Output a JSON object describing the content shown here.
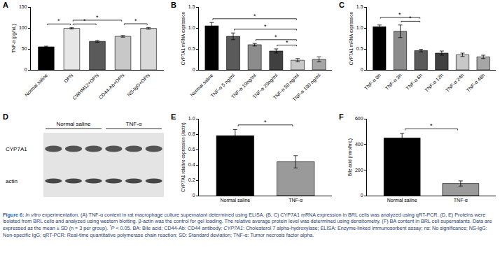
{
  "chart_data": [
    {
      "panel": "A",
      "type": "bar",
      "ylabel": "TNF-α (pg/mL)",
      "categories": [
        "Normal saline",
        "OPN",
        "CWHM12+OPN",
        "CD44-Ab+OPN",
        "NS-IgG+OPN"
      ],
      "values": [
        55,
        99,
        68,
        80,
        99
      ],
      "error": [
        1.5,
        1.5,
        2,
        2,
        2
      ],
      "colors": [
        "#000000",
        "#e6e6e6",
        "#5a5a5a",
        "#c8c8c8",
        "#d9d9d9"
      ],
      "ylim": [
        0,
        150
      ],
      "yticks": [
        0,
        50,
        100,
        150
      ],
      "grid": false,
      "significance": [
        {
          "from": "Normal saline",
          "to": "OPN",
          "label": "*"
        },
        {
          "from": "OPN",
          "to": "CWHM12+OPN",
          "label": "*"
        },
        {
          "from": "OPN",
          "to": "CD44-Ab+OPN",
          "label": "*"
        },
        {
          "from": "CD44-Ab+OPN",
          "to": "NS-IgG+OPN",
          "label": "*"
        }
      ]
    },
    {
      "panel": "B",
      "type": "bar",
      "ylabel": "CYP7A1 mRNA expression",
      "categories": [
        "Normal saline",
        "TNF-α 5 ng/ml",
        "TNF-α 10ng/ml",
        "TNF-α 20ng/ml",
        "TNF-α 50 ng/ml",
        "TNF-α 100 ng/ml"
      ],
      "values": [
        1.05,
        0.8,
        0.6,
        0.45,
        0.23,
        0.25
      ],
      "error": [
        0.08,
        0.08,
        0.03,
        0.05,
        0.04,
        0.06
      ],
      "colors": [
        "#000000",
        "#5a5a5a",
        "#8c8c8c",
        "#404040",
        "#c8c8c8",
        "#a6a6a6"
      ],
      "ylim": [
        0,
        1.5
      ],
      "yticks": [
        0,
        0.5,
        {
          "value": 1,
          "label": "1.0"
        },
        1.5
      ],
      "grid": false,
      "significance": [
        {
          "from": "Normal saline",
          "to": "TNF-α 50 ng/ml",
          "label": "*"
        },
        {
          "from": "TNF-α 5 ng/ml",
          "to": "TNF-α 50 ng/ml",
          "label": "*"
        },
        {
          "from": "TNF-α 10ng/ml",
          "to": "TNF-α 50 ng/ml",
          "label": "*"
        },
        {
          "from": "TNF-α 20ng/ml",
          "to": "TNF-α 50 ng/ml",
          "label": "*"
        }
      ]
    },
    {
      "panel": "C",
      "type": "bar",
      "ylabel": "CYP7A1 mRNA expression",
      "categories": [
        "TNF-α 0h",
        "TNF-α 3h",
        "TNF-α 6h",
        "TNF-α 12h",
        "TNF-α 24h",
        "TNF-α 48h"
      ],
      "values": [
        1.03,
        0.92,
        0.46,
        0.4,
        0.36,
        0.31
      ],
      "error": [
        0.04,
        0.15,
        0.03,
        0.05,
        0.04,
        0.04
      ],
      "colors": [
        "#000000",
        "#8c8c8c",
        "#5a5a5a",
        "#404040",
        "#c8c8c8",
        "#a6a6a6"
      ],
      "ylim": [
        0,
        1.5
      ],
      "yticks": [
        0,
        0.5,
        {
          "value": 1,
          "label": "1.0"
        },
        1.5
      ],
      "grid": false,
      "significance": [
        {
          "from": "TNF-α 0h",
          "to": "TNF-α 6h",
          "label": "*"
        },
        {
          "from": "TNF-α 3h",
          "to": "TNF-α 6h",
          "label": "*"
        }
      ]
    },
    {
      "panel": "E",
      "type": "bar",
      "ylabel": "CYP7A1 relative expression (/actin)",
      "categories": [
        "Normal saline",
        "TNF-α"
      ],
      "values": [
        0.78,
        0.44
      ],
      "error": [
        0.08,
        0.08
      ],
      "colors": [
        "#000000",
        "#9a9a9a"
      ],
      "ylim": [
        0,
        1.0
      ],
      "yticks": [
        0,
        0.2,
        0.4,
        0.6,
        0.8,
        {
          "value": 1,
          "label": "1.0"
        }
      ],
      "grid": false,
      "significance": [
        {
          "from": "Normal saline",
          "to": "TNF-α",
          "label": "*"
        }
      ]
    },
    {
      "panel": "F",
      "type": "bar",
      "ylabel": "Bile acid (nmol/mL)",
      "categories": [
        "Normal saline",
        "TNF-α"
      ],
      "values": [
        450,
        95
      ],
      "error": [
        35,
        20
      ],
      "colors": [
        "#000000",
        "#9a9a9a"
      ],
      "ylim": [
        0,
        600
      ],
      "yticks": [
        0,
        200,
        400,
        600
      ],
      "grid": false,
      "significance": [
        {
          "from": "Normal saline",
          "to": "TNF-α",
          "label": "*"
        }
      ]
    }
  ],
  "blot": {
    "panel": "D",
    "groups": [
      {
        "label": "Normal saline",
        "lanes": 3
      },
      {
        "label": "TNF-α",
        "lanes": 3
      }
    ],
    "rows": [
      "CYP7A1",
      "actin"
    ]
  },
  "caption": [
    {
      "text": "Figure 6: ",
      "style": "bold"
    },
    {
      "text": "In vitro",
      "style": "italic"
    },
    {
      "text": " experimentation. (A) TNF-α content in rat macrophage culture supernatant determined using ELISA. (B, C) CYP7A1 mRNA expression in BRL cells was analyzed using qRT-PCR. (D, E) Proteins were isolated from BRL cells and analyzed using western blotting. β-actin was the control for gel loading. The relative average protein level was determined using densitometry. (F) BA content in BRL cell supernatants. Data are expressed as the mean ± SD (n = 3 per group). ",
      "style": "plain"
    },
    {
      "text": "*",
      "style": "superscript"
    },
    {
      "text": "P",
      "style": "italic"
    },
    {
      "text": " < 0.05. BA: Bile acid; CD44-Ab: CD44 antibody; ",
      "style": "plain"
    },
    {
      "text": "CYP7A1",
      "style": "italic"
    },
    {
      "text": ": Cholesterol 7 alpha-hydroxylase; ELISA: Enzyme-linked immunosorbent assay; ns: No significance; NS-IgG: Non-specific IgG; qRT-PCR: Real-time quantitative polymerase chain reaction; SD: Standard deviation; TNF-α: Tumor necrosis factor alpha.",
      "style": "plain"
    }
  ]
}
